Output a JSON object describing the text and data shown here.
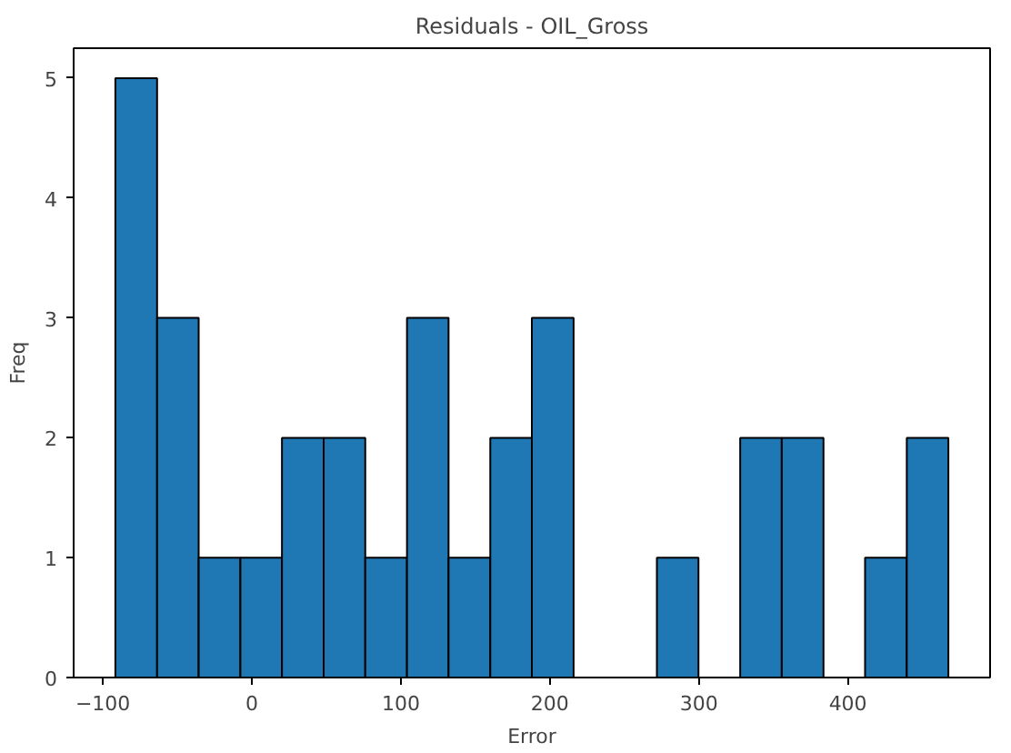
{
  "chart_data": {
    "type": "histogram",
    "title": "Residuals - OIL_Gross",
    "xlabel": "Error",
    "ylabel": "Freq",
    "bins": [
      -91.6,
      -63.6,
      -35.7,
      -7.7,
      20.2,
      48.2,
      76.1,
      104.1,
      132.0,
      160.0,
      187.9,
      215.9,
      243.8,
      271.8,
      299.7,
      327.7,
      355.6,
      383.6,
      411.5,
      439.5,
      467.4
    ],
    "values": [
      5,
      3,
      1,
      1,
      2,
      2,
      1,
      3,
      1,
      2,
      3,
      0,
      0,
      1,
      0,
      2,
      2,
      0,
      1,
      2
    ],
    "color": "#1f77b4",
    "xlim": [
      -119.6,
      495.4
    ],
    "xticks": [
      -100,
      0,
      100,
      200,
      300,
      400
    ],
    "ylim": [
      0,
      5.25
    ],
    "yticks": [
      0,
      1,
      2,
      3,
      4,
      5
    ],
    "grid": false
  }
}
